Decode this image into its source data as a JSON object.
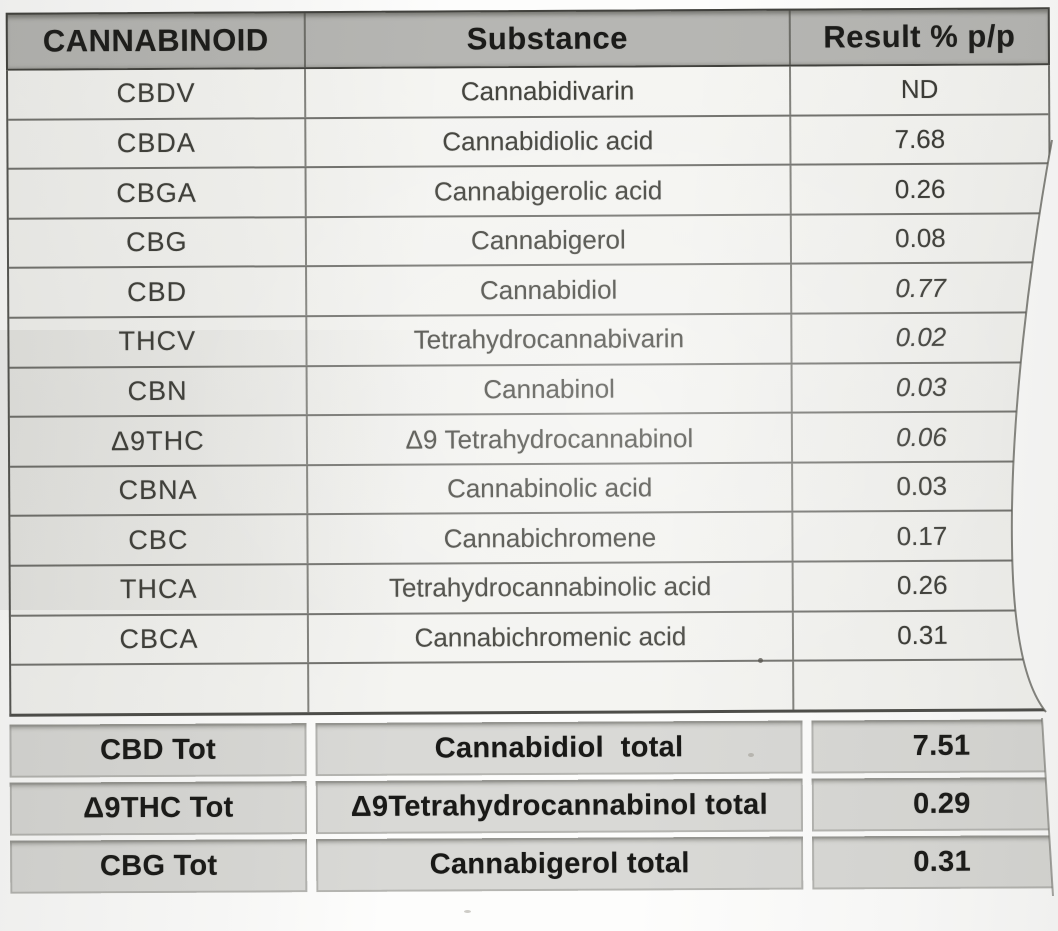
{
  "document": {
    "type": "lab-result-photo",
    "header": {
      "col_cannabinoid": "CANNABINOID",
      "col_substance": "Substance",
      "col_result": "Result % p/p"
    }
  },
  "table": {
    "columns": [
      "CANNABINOID",
      "Substance",
      "Result % p/p"
    ],
    "rows": [
      {
        "code": "CBDV",
        "substance": "Cannabidivarin",
        "result": "ND",
        "italic": false
      },
      {
        "code": "CBDA",
        "substance": "Cannabidiolic acid",
        "result": "7.68",
        "italic": false
      },
      {
        "code": "CBGA",
        "substance": "Cannabigerolic acid",
        "result": "0.26",
        "italic": false
      },
      {
        "code": "CBG",
        "substance": "Cannabigerol",
        "result": "0.08",
        "italic": false
      },
      {
        "code": "CBD",
        "substance": "Cannabidiol",
        "result": "0.77",
        "italic": true
      },
      {
        "code": "THCV",
        "substance": "Tetrahydrocannabivarin",
        "result": "0.02",
        "italic": true
      },
      {
        "code": "CBN",
        "substance": "Cannabinol",
        "result": "0.03",
        "italic": true
      },
      {
        "code": "Δ9THC",
        "substance": "Δ9 Tetrahydrocannabinol",
        "result": "0.06",
        "italic": true
      },
      {
        "code": "CBNA",
        "substance": "Cannabinolic acid",
        "result": "0.03",
        "italic": false
      },
      {
        "code": "CBC",
        "substance": "Cannabichromene",
        "result": "0.17",
        "italic": false
      },
      {
        "code": "THCA",
        "substance": "Tetrahydrocannabinolic acid",
        "result": "0.26",
        "italic": false
      },
      {
        "code": "CBCA",
        "substance": "Cannabichromenic acid",
        "result": "0.31",
        "italic": false
      },
      {
        "code": "",
        "substance": "",
        "result": "",
        "italic": false
      }
    ],
    "totals": [
      {
        "code": "CBD Tot",
        "substance": "Cannabidiol  total",
        "result": "7.51"
      },
      {
        "code": "Δ9THC Tot",
        "substance": "Δ9Tetrahydrocannabinol total",
        "result": "0.29"
      },
      {
        "code": "CBG Tot",
        "substance": "Cannabigerol total",
        "result": "0.31"
      }
    ]
  },
  "colors": {
    "header_bg": "#b6b6b3",
    "totals_bg": "#d9d9d6",
    "row_bg": "#f4f4f1",
    "grid_line": "#3a3a38",
    "page_bg": "#fdfdfc",
    "text": "#3f3f3a"
  }
}
